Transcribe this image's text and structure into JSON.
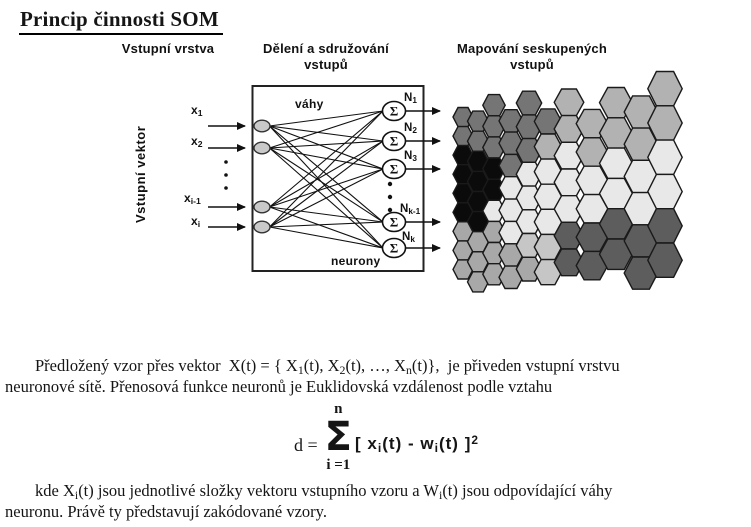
{
  "page": {
    "title": "Princip činnosti SOM"
  },
  "diagram": {
    "headers": {
      "col1": "Vstupní vrstva",
      "col2_line1": "Dělení a sdružování",
      "col2_line2": "vstupů",
      "col3_line1": "Mapování seskupených",
      "col3_line2": "vstupů"
    },
    "input_axis_label": "Vstupní vektor",
    "weights_label": "váhy",
    "neurons_label": "neurony",
    "neuron_symbol": "Σ",
    "input_labels": [
      [
        {
          "t": "x"
        },
        {
          "s": "1"
        }
      ],
      [
        {
          "t": "x"
        },
        {
          "s": "2"
        }
      ],
      [
        {
          "t": "x"
        },
        {
          "s": "i-1"
        }
      ],
      [
        {
          "t": "x"
        },
        {
          "s": "i"
        }
      ]
    ],
    "neuron_labels": [
      [
        {
          "t": "N"
        },
        {
          "s": "1"
        }
      ],
      [
        {
          "t": "N"
        },
        {
          "s": "2"
        }
      ],
      [
        {
          "t": "N"
        },
        {
          "s": "3"
        }
      ],
      [
        {
          "t": "N"
        },
        {
          "s": "k-1"
        }
      ],
      [
        {
          "t": "N"
        },
        {
          "s": "k"
        }
      ]
    ],
    "node_fill": "#c9c9c9",
    "line_color": "#111111",
    "hexmap": {
      "palette": {
        "D": "#757575",
        "K": "#0b0b0b",
        "M": "#a8a8a8",
        "L": "#e8e8e8",
        "G": "#b2b2b2",
        "C": "#c6c6c6",
        "R": "#5d5d5d"
      },
      "columns": [
        "DDKKKKMMM",
        "DDKKKKMMM",
        "DDDKKLMMM",
        "DDDLLLMM",
        "DDDLLLCM",
        "DGLLLCC",
        "GGLLLRR",
        "GGLLRR",
        "GGLLRR",
        "GGLLRR",
        "GGLLRR"
      ]
    }
  },
  "text": {
    "para1": [
      [
        {
          "t": "Předložený vzor přes vektor  X(t) = { X"
        },
        {
          "s": "1"
        },
        {
          "t": "(t), X"
        },
        {
          "s": "2"
        },
        {
          "t": "(t), …, X"
        },
        {
          "s": "n"
        },
        {
          "t": "(t)},  je přiveden vstupní vrstvu"
        }
      ],
      [
        {
          "t": "neuronové sítě. Přenosová funkce neuronů je Euklidovská vzdálenost podle vztahu"
        }
      ]
    ],
    "formula": {
      "lhs": "d =",
      "sum_upper": "n",
      "sum_symbol": "Σ",
      "sum_lower": "i =1",
      "body": [
        {
          "t": "[ x"
        },
        {
          "s": "i"
        },
        {
          "t": "(t) - w"
        },
        {
          "s": "i"
        },
        {
          "t": "(t) ]"
        },
        {
          "p": "2"
        }
      ]
    },
    "para2": [
      [
        {
          "t": "kde X"
        },
        {
          "s": "i"
        },
        {
          "t": "(t) jsou jednotlivé složky vektoru vstupního vzoru a W"
        },
        {
          "s": "i"
        },
        {
          "t": "(t) jsou odpovídající váhy"
        }
      ],
      [
        {
          "t": "neuronu. Právě ty představují zakódované vzory."
        }
      ]
    ]
  }
}
